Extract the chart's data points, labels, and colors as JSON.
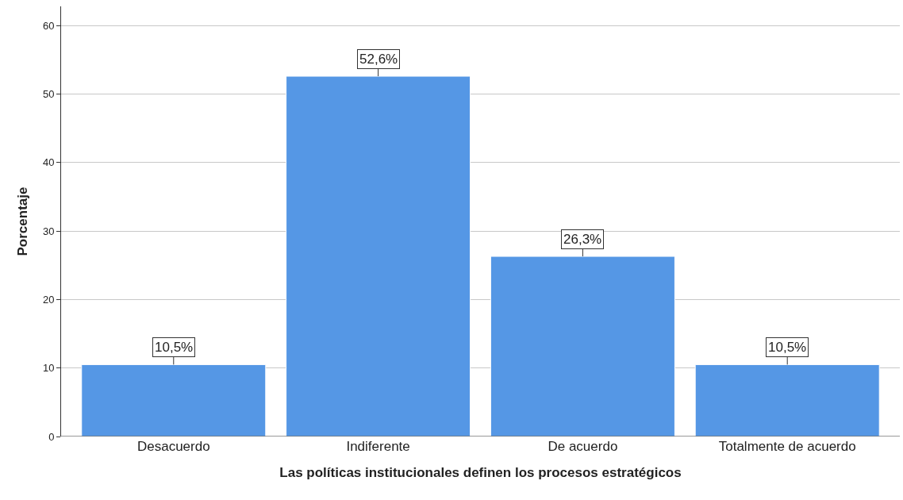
{
  "chart_data": {
    "type": "bar",
    "xlabel": "Las políticas institucionales definen los procesos estratégicos",
    "ylabel": "Porcentaje",
    "categories": [
      "Desacuerdo",
      "Indiferente",
      "De acuerdo",
      "Totalmente de acuerdo"
    ],
    "values": [
      10.5,
      52.6,
      26.3,
      10.5
    ],
    "value_labels": [
      "10,5%",
      "52,6%",
      "26,3%",
      "10,5%"
    ],
    "color": "#5597e5",
    "ylim": [
      0,
      62.8
    ],
    "yticks": [
      0,
      10,
      20,
      30,
      40,
      50,
      60
    ],
    "grid": "y",
    "legend": false
  }
}
